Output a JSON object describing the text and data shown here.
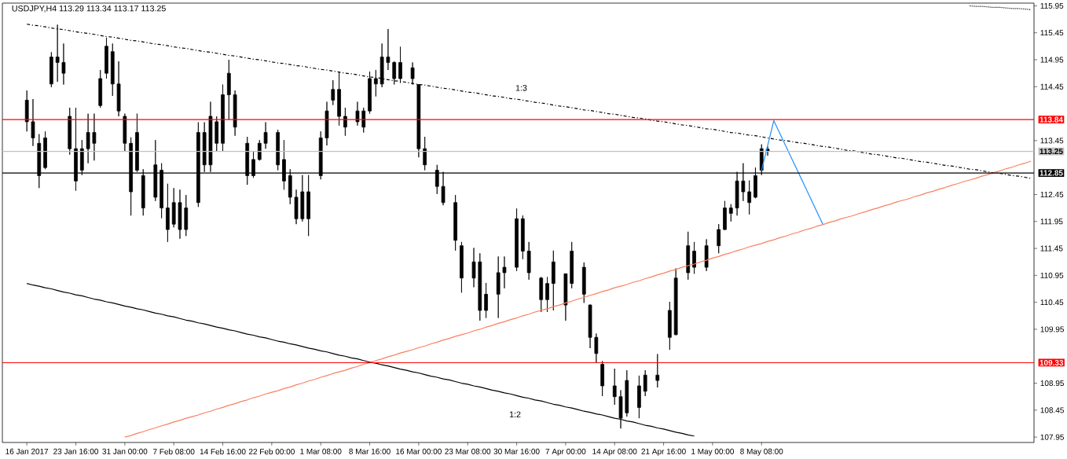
{
  "chart_data": {
    "type": "candlestick",
    "title": "USDJPY,H4 113.29 113.34 113.17 113.25",
    "color": "#000000",
    "categories": [
      "16 Jan 2017",
      null,
      null,
      null,
      null,
      null,
      null,
      null,
      "23 Jan 16:00",
      null,
      null,
      null,
      null,
      null,
      null,
      null,
      "31 Jan 00:00",
      null,
      null,
      null,
      null,
      null,
      null,
      null,
      "7 Feb 08:00",
      null,
      null,
      null,
      null,
      null,
      null,
      null,
      "14 Feb 16:00",
      null,
      null,
      null,
      null,
      null,
      null,
      null,
      "22 Feb 00:00",
      null,
      null,
      null,
      null,
      null,
      null,
      null,
      "1 Mar 08:00",
      null,
      null,
      null,
      null,
      null,
      null,
      null,
      "8 Mar 16:00",
      null,
      null,
      null,
      null,
      null,
      null,
      null,
      "16 Mar 00:00",
      null,
      null,
      null,
      null,
      null,
      null,
      null,
      "23 Mar 08:00",
      null,
      null,
      null,
      null,
      null,
      null,
      null,
      "30 Mar 16:00",
      null,
      null,
      null,
      null,
      null,
      null,
      null,
      "7 Apr 00:00",
      null,
      null,
      null,
      null,
      null,
      null,
      null,
      "14 Apr 08:00",
      null,
      null,
      null,
      null,
      null,
      null,
      null,
      "21 Apr 16:00",
      null,
      null,
      null,
      null,
      null,
      null,
      null,
      "1 May 00:00",
      null,
      null,
      null,
      null,
      null,
      null,
      null,
      "8 May 08:00",
      null,
      null,
      null,
      null,
      null,
      null,
      null,
      null,
      null,
      null,
      null,
      null,
      null,
      null,
      null,
      null,
      null,
      null,
      null,
      null,
      null,
      null,
      null,
      null,
      null,
      null,
      null,
      null,
      null,
      null,
      null,
      null,
      null,
      null,
      null,
      null,
      null,
      null,
      null,
      null,
      null,
      null,
      null,
      null
    ],
    "ohlc": [
      [
        114.2,
        114.38,
        113.62,
        113.8
      ],
      [
        113.8,
        114.22,
        113.35,
        113.5
      ],
      [
        113.4,
        113.57,
        112.57,
        112.8
      ],
      [
        112.95,
        113.62,
        112.92,
        113.5
      ],
      [
        114.5,
        115.09,
        114.44,
        115.0
      ],
      [
        115.0,
        115.6,
        114.54,
        114.9
      ],
      [
        114.9,
        115.25,
        114.49,
        114.7
      ],
      [
        113.9,
        114.06,
        113.19,
        113.3
      ],
      [
        113.3,
        114.06,
        112.52,
        112.7
      ],
      [
        112.9,
        113.46,
        112.81,
        113.3
      ],
      [
        113.3,
        113.95,
        113.03,
        113.6
      ],
      [
        113.6,
        113.95,
        113.08,
        113.4
      ],
      [
        114.1,
        114.76,
        114.06,
        114.6
      ],
      [
        114.7,
        115.36,
        114.6,
        115.2
      ],
      [
        115.1,
        115.25,
        114.28,
        114.5
      ],
      [
        114.5,
        114.92,
        113.9,
        114.0
      ],
      [
        113.9,
        113.95,
        113.25,
        113.4
      ],
      [
        113.4,
        113.51,
        112.06,
        112.5
      ],
      [
        112.9,
        113.95,
        112.87,
        113.6
      ],
      [
        112.8,
        112.92,
        112.06,
        112.2
      ],
      null,
      [
        112.4,
        113.46,
        112.33,
        113.0
      ],
      [
        112.9,
        113.03,
        112.01,
        112.2
      ],
      [
        112.2,
        112.65,
        111.57,
        111.8
      ],
      [
        111.9,
        112.57,
        111.84,
        112.3
      ],
      [
        112.3,
        112.54,
        111.63,
        111.8
      ],
      [
        111.8,
        112.44,
        111.68,
        112.2
      ],
      null,
      [
        112.3,
        113.79,
        112.22,
        113.6
      ],
      [
        113.6,
        113.79,
        112.87,
        113.0
      ],
      [
        113.0,
        114.17,
        112.87,
        113.9
      ],
      [
        113.8,
        113.9,
        113.25,
        113.4
      ],
      [
        113.4,
        114.49,
        113.25,
        114.3
      ],
      [
        114.3,
        114.95,
        113.84,
        114.7
      ],
      [
        114.3,
        114.38,
        113.54,
        113.7
      ],
      null,
      [
        113.4,
        113.52,
        112.63,
        112.8
      ],
      [
        112.8,
        113.25,
        112.76,
        113.1
      ],
      [
        113.1,
        113.46,
        113.08,
        113.4
      ],
      [
        113.4,
        113.79,
        113.3,
        113.6
      ],
      null,
      [
        113.6,
        113.65,
        112.9,
        113.0
      ],
      [
        113.1,
        113.46,
        112.54,
        112.7
      ],
      [
        112.8,
        112.92,
        112.27,
        112.4
      ],
      [
        112.4,
        112.54,
        111.9,
        112.0
      ],
      [
        112.0,
        112.81,
        111.95,
        112.5
      ],
      [
        112.5,
        112.81,
        111.68,
        112.0
      ],
      null,
      [
        112.8,
        113.62,
        112.73,
        113.5
      ],
      [
        113.5,
        114.17,
        113.36,
        114.0
      ],
      [
        114.2,
        114.57,
        114.11,
        114.4
      ],
      [
        114.4,
        114.73,
        113.73,
        113.9
      ],
      [
        113.9,
        114.06,
        113.54,
        113.7
      ],
      null,
      [
        113.8,
        114.17,
        113.73,
        114.0
      ],
      [
        114.0,
        114.06,
        113.6,
        113.7
      ],
      [
        114.0,
        114.73,
        113.95,
        114.6
      ],
      [
        114.6,
        114.76,
        114.27,
        114.5
      ],
      [
        114.5,
        115.25,
        114.44,
        115.0
      ],
      [
        115.0,
        115.52,
        114.76,
        114.9
      ],
      [
        114.9,
        114.92,
        114.49,
        114.6
      ],
      [
        114.6,
        115.19,
        114.52,
        114.9
      ],
      null,
      [
        114.8,
        114.9,
        114.49,
        114.6
      ],
      [
        114.49,
        114.49,
        113.14,
        113.3
      ],
      [
        113.3,
        113.52,
        112.9,
        113.0
      ],
      null,
      [
        112.9,
        113.0,
        112.46,
        112.6
      ],
      [
        112.6,
        112.87,
        112.25,
        112.3
      ],
      null,
      [
        112.3,
        112.44,
        111.41,
        111.6
      ],
      [
        111.5,
        111.57,
        110.63,
        110.9
      ],
      null,
      [
        110.9,
        111.46,
        110.73,
        111.2
      ],
      [
        111.2,
        111.36,
        110.11,
        110.3
      ],
      [
        110.3,
        110.81,
        110.16,
        110.6
      ],
      null,
      [
        110.6,
        111.3,
        110.16,
        111.0
      ],
      [
        111.0,
        111.3,
        110.71,
        111.1
      ],
      null,
      [
        111.1,
        112.19,
        111.03,
        112.0
      ],
      [
        112.0,
        112.06,
        111.25,
        111.4
      ],
      [
        111.4,
        111.57,
        110.87,
        111.0
      ],
      null,
      [
        110.9,
        110.92,
        110.27,
        110.5
      ],
      [
        110.5,
        110.92,
        110.27,
        110.8
      ],
      [
        110.8,
        111.41,
        110.3,
        111.2
      ],
      null,
      [
        110.98,
        110.98,
        110.11,
        110.4
      ],
      [
        110.8,
        111.57,
        110.71,
        111.4
      ],
      null,
      [
        111.1,
        111.19,
        110.44,
        110.6
      ],
      [
        110.4,
        110.41,
        109.6,
        109.8
      ],
      [
        109.8,
        109.87,
        109.33,
        109.5
      ],
      [
        109.3,
        109.36,
        108.71,
        108.9
      ],
      null,
      [
        108.9,
        109.22,
        108.55,
        108.7
      ],
      [
        108.7,
        108.82,
        108.11,
        108.3
      ],
      [
        108.4,
        109.19,
        108.33,
        109.0
      ],
      null,
      [
        108.9,
        109.09,
        108.3,
        108.5
      ],
      [
        108.8,
        109.19,
        108.71,
        109.1
      ],
      null,
      [
        109.1,
        109.49,
        108.87,
        109.0
      ],
      null,
      [
        110.3,
        110.46,
        109.57,
        109.8
      ],
      [
        109.85,
        111.08,
        109.84,
        110.9
      ],
      null,
      [
        111.0,
        111.76,
        110.87,
        111.5
      ],
      [
        111.4,
        111.57,
        110.98,
        111.1
      ],
      null,
      [
        111.1,
        111.62,
        111.03,
        111.5
      ],
      null,
      [
        111.5,
        111.9,
        111.36,
        111.8
      ],
      [
        111.8,
        112.33,
        111.79,
        112.2
      ],
      [
        112.1,
        112.27,
        111.95,
        112.2
      ],
      [
        112.2,
        112.87,
        112.06,
        112.7
      ],
      [
        112.7,
        113.03,
        112.33,
        112.5
      ],
      [
        112.5,
        112.71,
        112.08,
        112.3
      ],
      [
        112.4,
        112.95,
        112.38,
        112.8
      ],
      [
        112.9,
        113.38,
        112.81,
        113.3
      ],
      [
        113.29,
        113.34,
        113.17,
        113.25
      ],
      null,
      null,
      null,
      null,
      null,
      null,
      null,
      null,
      null,
      null,
      null,
      null,
      null,
      null,
      null,
      null,
      null,
      null,
      null,
      null,
      null,
      null,
      null,
      null,
      null,
      null,
      null,
      null,
      null,
      null,
      null,
      null,
      null,
      null,
      null,
      null,
      null,
      null,
      null,
      null,
      null,
      null,
      null
    ],
    "series": [
      {
        "type": "line",
        "color": "#000000",
        "line_style": "dashed",
        "values": [
          115.61,
          115.59,
          115.58,
          115.56,
          115.54,
          115.52,
          115.51,
          115.49,
          115.47,
          115.45,
          115.44,
          115.42,
          115.4,
          115.38,
          115.37,
          115.35,
          115.33,
          115.31,
          115.3,
          115.28,
          115.26,
          115.24,
          115.23,
          115.21,
          115.19,
          115.17,
          115.16,
          115.14,
          115.12,
          115.1,
          115.09,
          115.07,
          115.05,
          115.03,
          115.02,
          115.0,
          114.98,
          114.96,
          114.95,
          114.93,
          114.91,
          114.89,
          114.88,
          114.86,
          114.84,
          114.83,
          114.81,
          114.79,
          114.77,
          114.76,
          114.74,
          114.72,
          114.7,
          114.69,
          114.67,
          114.65,
          114.63,
          114.62,
          114.6,
          114.58,
          114.56,
          114.55,
          114.53,
          114.51,
          114.49,
          114.48,
          114.46,
          114.44,
          114.42,
          114.41,
          114.39,
          114.37,
          114.35,
          114.34,
          114.32,
          114.3,
          114.28,
          114.27,
          114.25,
          114.23,
          114.22,
          114.2,
          114.18,
          114.16,
          114.15,
          114.13,
          114.11,
          114.09,
          114.08,
          114.06,
          114.04,
          114.02,
          114.01,
          113.99,
          113.97,
          113.95,
          113.94,
          113.92,
          113.9,
          113.88,
          113.87,
          113.85,
          113.83,
          113.81,
          113.8,
          113.78,
          113.76,
          113.74,
          113.73,
          113.71,
          113.69,
          113.67,
          113.66,
          113.64,
          113.62,
          113.6,
          113.59,
          113.57,
          113.55,
          113.54,
          113.52,
          113.5,
          113.48,
          113.46,
          113.45,
          113.43,
          113.41,
          113.4,
          113.38,
          113.36,
          113.34,
          113.33,
          113.31,
          113.29,
          113.27,
          113.26,
          113.24,
          113.22,
          113.2,
          113.19,
          113.17,
          113.15,
          113.13,
          113.12,
          113.1,
          113.08,
          113.06,
          113.05,
          113.03,
          113.01,
          112.99,
          112.98,
          112.96,
          112.94,
          112.92,
          112.91,
          112.89,
          112.87,
          112.85,
          112.84,
          112.82,
          112.8,
          112.79,
          112.77,
          112.75
        ]
      },
      {
        "type": "line",
        "color": "#000000",
        "line_style": "dotted",
        "values": [
          null,
          null,
          null,
          null,
          null,
          null,
          null,
          null,
          null,
          null,
          null,
          null,
          null,
          null,
          null,
          null,
          null,
          null,
          null,
          null,
          null,
          null,
          null,
          null,
          null,
          null,
          null,
          null,
          null,
          null,
          null,
          null,
          null,
          null,
          null,
          null,
          null,
          null,
          null,
          null,
          null,
          null,
          null,
          null,
          null,
          null,
          null,
          null,
          null,
          null,
          null,
          null,
          null,
          null,
          null,
          null,
          null,
          null,
          null,
          null,
          null,
          null,
          null,
          null,
          null,
          null,
          null,
          null,
          null,
          null,
          null,
          null,
          null,
          null,
          null,
          null,
          null,
          null,
          null,
          null,
          null,
          null,
          null,
          null,
          null,
          null,
          null,
          null,
          null,
          null,
          null,
          null,
          null,
          null,
          null,
          null,
          null,
          null,
          null,
          null,
          null,
          null,
          null,
          null,
          null,
          null,
          null,
          null,
          null,
          null,
          null,
          null,
          null,
          null,
          null,
          null,
          null,
          null,
          null,
          null,
          null,
          null,
          null,
          null,
          null,
          null,
          null,
          null,
          null,
          null,
          null,
          null,
          null,
          null,
          null,
          null,
          null,
          null,
          null,
          null,
          null,
          null,
          null,
          null,
          null,
          null,
          null,
          null,
          null,
          null,
          null,
          null,
          null,
          null,
          115.95,
          115.94,
          115.94,
          115.93,
          115.92,
          115.92,
          115.91,
          115.9,
          115.9,
          115.89,
          115.88
        ]
      },
      {
        "type": "line",
        "color": "#fa8060",
        "line_style": "solid",
        "values": [
          null,
          null,
          null,
          null,
          null,
          null,
          null,
          null,
          null,
          null,
          null,
          null,
          null,
          null,
          null,
          null,
          107.95,
          107.98,
          108.02,
          108.05,
          108.09,
          108.12,
          108.16,
          108.19,
          108.23,
          108.26,
          108.3,
          108.33,
          108.36,
          108.4,
          108.43,
          108.47,
          108.5,
          108.54,
          108.57,
          108.61,
          108.64,
          108.68,
          108.71,
          108.75,
          108.78,
          108.81,
          108.85,
          108.88,
          108.92,
          108.95,
          108.99,
          109.02,
          109.06,
          109.09,
          109.13,
          109.16,
          109.19,
          109.23,
          109.26,
          109.3,
          109.33,
          109.37,
          109.4,
          109.44,
          109.47,
          109.51,
          109.54,
          109.57,
          109.61,
          109.64,
          109.68,
          109.71,
          109.75,
          109.78,
          109.82,
          109.85,
          109.88,
          109.92,
          109.95,
          109.99,
          110.02,
          110.06,
          110.09,
          110.13,
          110.16,
          110.2,
          110.23,
          110.27,
          110.3,
          110.33,
          110.37,
          110.4,
          110.44,
          110.47,
          110.51,
          110.54,
          110.58,
          110.61,
          110.65,
          110.68,
          110.72,
          110.75,
          110.78,
          110.82,
          110.85,
          110.89,
          110.92,
          110.96,
          110.99,
          111.03,
          111.06,
          111.1,
          111.13,
          111.16,
          111.2,
          111.23,
          111.27,
          111.3,
          111.34,
          111.37,
          111.41,
          111.44,
          111.48,
          111.51,
          111.54,
          111.58,
          111.61,
          111.65,
          111.68,
          111.72,
          111.75,
          111.79,
          111.82,
          111.86,
          111.89,
          111.93,
          111.96,
          112.0,
          112.03,
          112.06,
          112.1,
          112.13,
          112.17,
          112.2,
          112.24,
          112.27,
          112.31,
          112.34,
          112.37,
          112.41,
          112.44,
          112.48,
          112.51,
          112.55,
          112.58,
          112.62,
          112.65,
          112.69,
          112.72,
          112.75,
          112.79,
          112.82,
          112.86,
          112.89,
          112.93,
          112.96,
          113.0,
          113.03,
          113.07
        ]
      },
      {
        "type": "line",
        "color": "#000000",
        "line_style": "solid",
        "values": [
          110.8,
          110.77,
          110.75,
          110.72,
          110.7,
          110.67,
          110.64,
          110.62,
          110.59,
          110.57,
          110.54,
          110.51,
          110.49,
          110.46,
          110.44,
          110.41,
          110.38,
          110.36,
          110.33,
          110.31,
          110.28,
          110.25,
          110.23,
          110.2,
          110.18,
          110.15,
          110.12,
          110.1,
          110.07,
          110.05,
          110.02,
          109.99,
          109.97,
          109.94,
          109.92,
          109.89,
          109.86,
          109.84,
          109.81,
          109.79,
          109.76,
          109.73,
          109.71,
          109.68,
          109.66,
          109.63,
          109.6,
          109.58,
          109.55,
          109.53,
          109.5,
          109.47,
          109.45,
          109.42,
          109.4,
          109.37,
          109.34,
          109.32,
          109.29,
          109.27,
          109.24,
          109.21,
          109.19,
          109.16,
          109.14,
          109.11,
          109.08,
          109.06,
          109.03,
          109.01,
          108.98,
          108.95,
          108.93,
          108.9,
          108.88,
          108.85,
          108.82,
          108.8,
          108.77,
          108.75,
          108.72,
          108.69,
          108.67,
          108.64,
          108.62,
          108.59,
          108.56,
          108.54,
          108.51,
          108.49,
          108.46,
          108.43,
          108.41,
          108.38,
          108.36,
          108.33,
          108.3,
          108.28,
          108.25,
          108.23,
          108.2,
          108.17,
          108.15,
          108.12,
          108.1,
          108.07,
          108.04,
          108.02,
          107.99,
          107.97,
          null,
          null,
          null,
          null,
          null,
          null,
          null,
          null,
          null,
          null,
          null,
          null,
          null,
          null,
          null,
          null,
          null,
          null,
          null,
          null,
          null,
          null,
          null,
          null,
          null,
          null,
          null,
          null,
          null,
          null,
          null,
          null,
          null,
          null,
          null,
          null,
          null,
          null,
          null,
          null,
          null,
          null,
          null,
          null,
          null,
          null,
          null,
          null,
          null,
          null,
          null,
          null,
          null,
          null,
          null
        ]
      },
      {
        "type": "line",
        "color": "#1e90ff",
        "line_style": "solid",
        "values": [
          null,
          null,
          null,
          null,
          null,
          null,
          null,
          null,
          null,
          null,
          null,
          null,
          null,
          null,
          null,
          null,
          null,
          null,
          null,
          null,
          null,
          null,
          null,
          null,
          null,
          null,
          null,
          null,
          null,
          null,
          null,
          null,
          null,
          null,
          null,
          null,
          null,
          null,
          null,
          null,
          null,
          null,
          null,
          null,
          null,
          null,
          null,
          null,
          null,
          null,
          null,
          null,
          null,
          null,
          null,
          null,
          null,
          null,
          null,
          null,
          null,
          null,
          null,
          null,
          null,
          null,
          null,
          null,
          null,
          null,
          null,
          null,
          null,
          null,
          null,
          null,
          null,
          null,
          null,
          null,
          null,
          null,
          null,
          null,
          null,
          null,
          null,
          null,
          null,
          null,
          null,
          null,
          null,
          null,
          null,
          null,
          null,
          null,
          null,
          null,
          null,
          null,
          null,
          null,
          null,
          null,
          null,
          null,
          null,
          null,
          null,
          null,
          null,
          null,
          null,
          null,
          null,
          null,
          null,
          null,
          112.9,
          113.36,
          113.82,
          113.58,
          113.34,
          113.1,
          112.86,
          112.62,
          112.38,
          112.14,
          111.9,
          null,
          null,
          null,
          null,
          null,
          null,
          null,
          null,
          null,
          null,
          null,
          null,
          null,
          null,
          null,
          null,
          null,
          null,
          null,
          null,
          null,
          null,
          null,
          null,
          null,
          null,
          null,
          null,
          null,
          null,
          null,
          null,
          null,
          null
        ]
      }
    ],
    "ref_lines": [
      {
        "axis": "y",
        "value": 113.84,
        "label": "113.84",
        "color": "#ff0000"
      },
      {
        "axis": "y",
        "value": 113.25,
        "label": "113.25",
        "color": "#c0c0c0"
      },
      {
        "axis": "y",
        "value": 112.85,
        "label": "112.85",
        "color": "#000000"
      },
      {
        "axis": "y",
        "value": 109.33,
        "label": "109.33",
        "color": "#ff0000"
      }
    ],
    "annotations": [
      "1:3",
      "1:2"
    ],
    "ylim": [
      107.85,
      116.0
    ],
    "yticks": [
      107.95,
      108.45,
      108.95,
      109.95,
      110.45,
      110.95,
      111.45,
      111.95,
      112.45,
      113.45,
      114.45,
      114.95,
      115.45,
      115.95
    ]
  }
}
